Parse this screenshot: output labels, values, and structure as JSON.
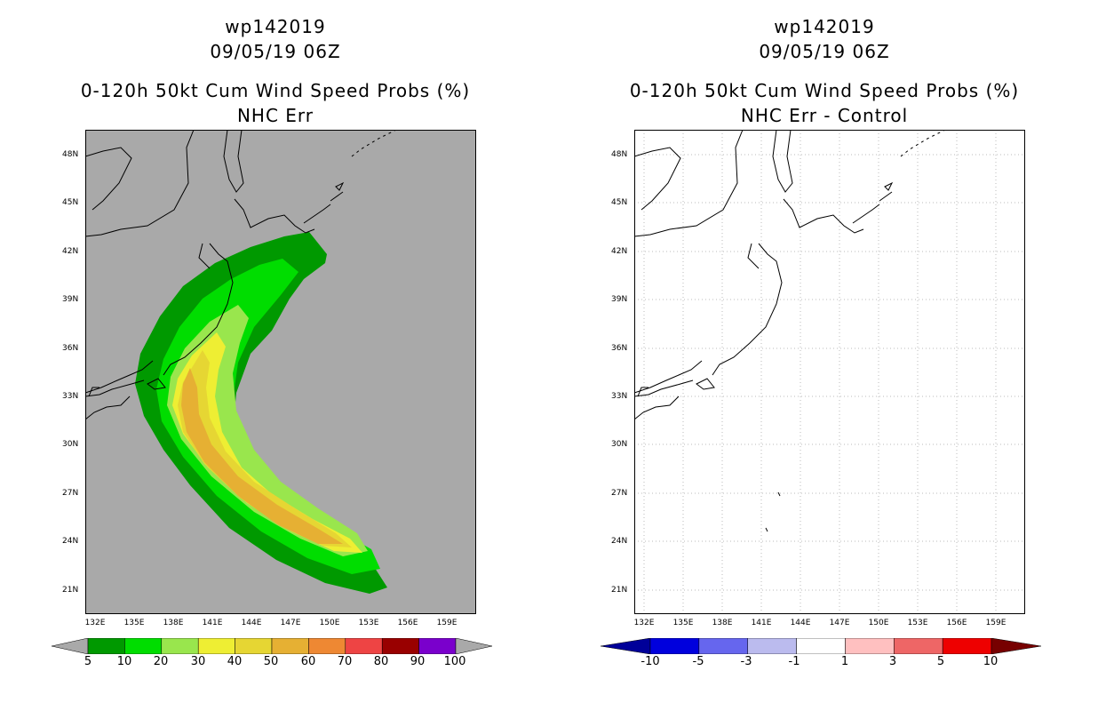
{
  "left_panel": {
    "title_line1": "wp142019",
    "title_line2": "09/05/19 06Z",
    "title_line3": "0-120h 50kt Cum Wind Speed Probs (%)",
    "title_line4": "NHC Err",
    "background_color": "#a9a9a9",
    "colorbar": {
      "labels": [
        "5",
        "10",
        "20",
        "30",
        "40",
        "50",
        "60",
        "70",
        "80",
        "90",
        "100"
      ],
      "colors": [
        "#009900",
        "#00dd00",
        "#99e64d",
        "#eeee33",
        "#e6d633",
        "#e6b033",
        "#ee8833",
        "#ee4444",
        "#990000",
        "#7a00cc"
      ],
      "end_color": "#a9a9a9"
    }
  },
  "right_panel": {
    "title_line1": "wp142019",
    "title_line2": "09/05/19 06Z",
    "title_line3": "0-120h 50kt Cum Wind Speed Probs (%)",
    "title_line4": "NHC Err - Control",
    "background_color": "#ffffff",
    "colorbar": {
      "labels": [
        "-10",
        "-5",
        "-3",
        "-1",
        "1",
        "3",
        "5",
        "10"
      ],
      "colors": [
        "#0000dd",
        "#6666ee",
        "#bbbbee",
        "#ffffff",
        "#ffc0c0",
        "#ee6666",
        "#ee0000"
      ],
      "low_end_color": "#000099",
      "high_end_color": "#770000"
    }
  },
  "axes": {
    "lat_labels": [
      "48N",
      "45N",
      "42N",
      "39N",
      "36N",
      "33N",
      "30N",
      "27N",
      "24N",
      "21N"
    ],
    "lon_labels": [
      "132E",
      "135E",
      "138E",
      "141E",
      "144E",
      "147E",
      "150E",
      "153E",
      "156E",
      "159E"
    ]
  }
}
